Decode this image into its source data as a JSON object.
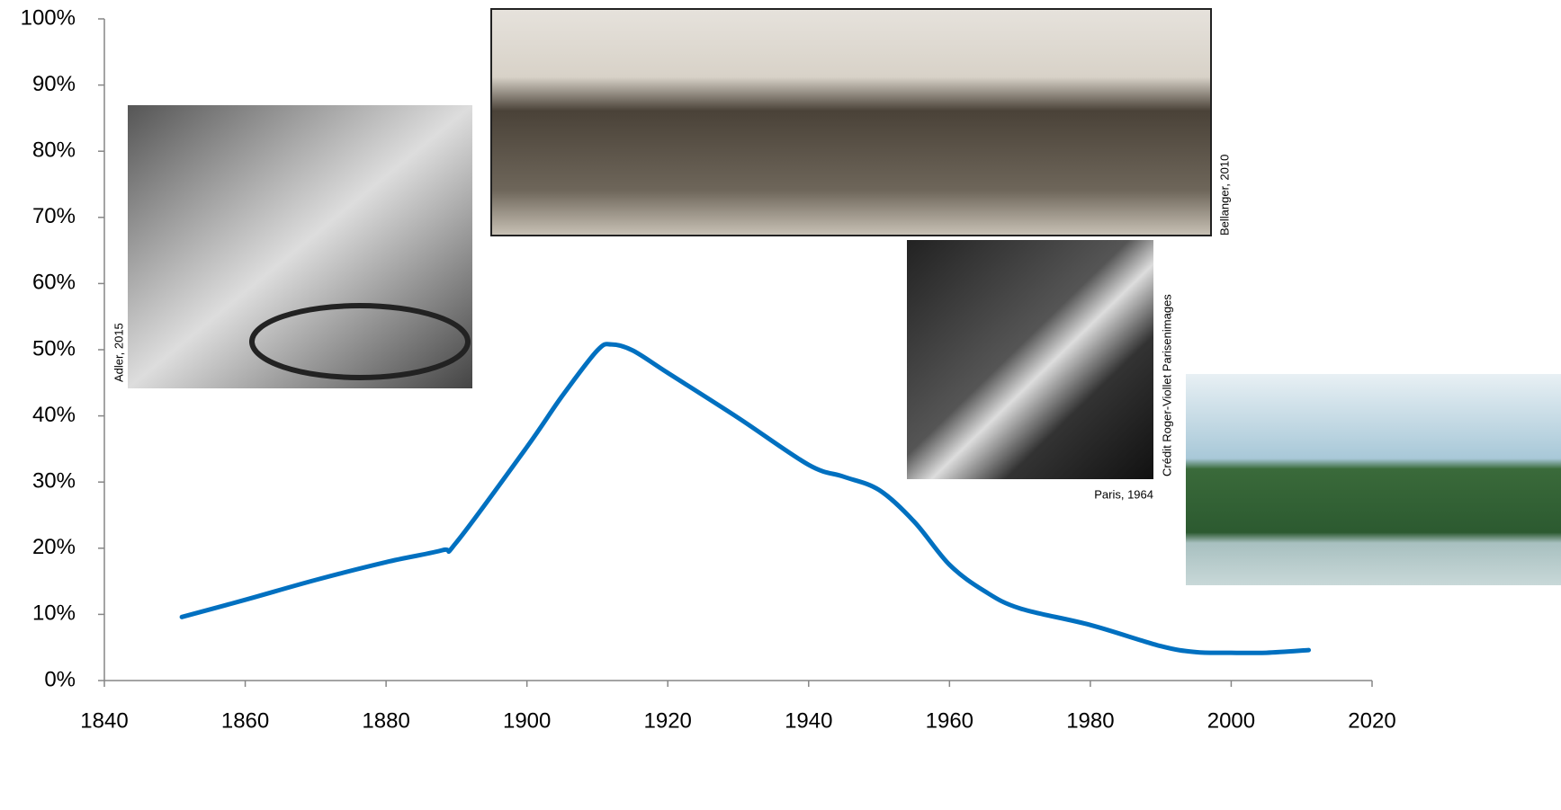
{
  "chart_data": {
    "type": "line",
    "x": [
      1851,
      1860,
      1870,
      1880,
      1888,
      1890,
      1900,
      1905,
      1910,
      1912,
      1915,
      1920,
      1930,
      1940,
      1945,
      1950,
      1955,
      1960,
      1965,
      1970,
      1980,
      1990,
      1995,
      2000,
      2005,
      2011
    ],
    "series": [
      {
        "color": "#0070c0",
        "values": [
          9.6,
          12.2,
          15.2,
          17.9,
          19.7,
          20.9,
          35.3,
          43,
          49.9,
          50.8,
          49.9,
          46.5,
          39.7,
          32.6,
          30.8,
          28.8,
          24,
          17.5,
          13.5,
          10.9,
          8.4,
          5.2,
          4.3,
          4.2,
          4.2,
          4.6
        ]
      }
    ],
    "xlim": [
      1840,
      2020
    ],
    "xticks": [
      1840,
      1860,
      1880,
      1900,
      1920,
      1940,
      1960,
      1980,
      2000,
      2020
    ],
    "ylim": [
      0,
      100
    ],
    "yticks": [
      {
        "value": 0,
        "label": "0%"
      },
      {
        "value": 10,
        "label": "10%"
      },
      {
        "value": 20,
        "label": "20%"
      },
      {
        "value": 30,
        "label": "30%"
      },
      {
        "value": 40,
        "label": "40%"
      },
      {
        "value": 50,
        "label": "50%"
      },
      {
        "value": 60,
        "label": "60%"
      },
      {
        "value": 70,
        "label": "70%"
      },
      {
        "value": 80,
        "label": "80%"
      },
      {
        "value": 90,
        "label": "90%"
      },
      {
        "value": 100,
        "label": "100%"
      }
    ],
    "annotations": [
      "Adler, 2015",
      "Bellanger, 2010",
      "Crédit Roger-Viollet Parisenimages",
      "Paris, 1964"
    ]
  }
}
